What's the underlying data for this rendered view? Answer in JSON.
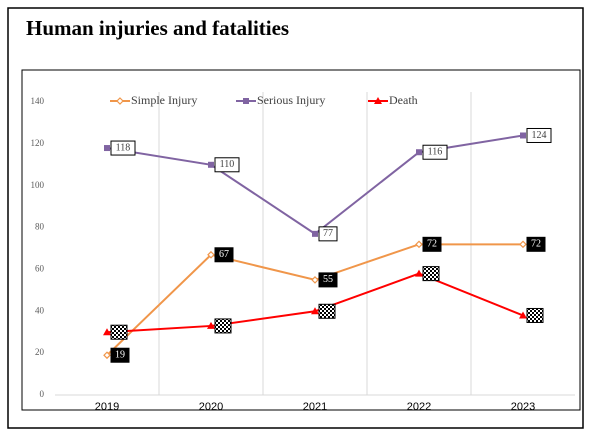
{
  "chart_data": {
    "type": "line",
    "title": "Human injuries and fatalities",
    "categories": [
      "2019",
      "2020",
      "2021",
      "2022",
      "2023"
    ],
    "series": [
      {
        "name": "Simple Injury",
        "color": "#f0964a",
        "marker": "diamond",
        "label_style": "dark",
        "values": [
          19,
          67,
          55,
          72,
          72
        ]
      },
      {
        "name": "Serious Injury",
        "color": "#8064a2",
        "marker": "square",
        "label_style": "light",
        "values": [
          118,
          110,
          77,
          116,
          124
        ]
      },
      {
        "name": "Death",
        "color": "#ff0000",
        "marker": "triangle",
        "label_style": "checker",
        "values": [
          30,
          33,
          40,
          58,
          38
        ]
      }
    ],
    "ylim": [
      0,
      140
    ],
    "yticks": [
      0,
      20,
      40,
      60,
      80,
      100,
      120,
      140
    ],
    "grid": true,
    "legend": "top"
  }
}
